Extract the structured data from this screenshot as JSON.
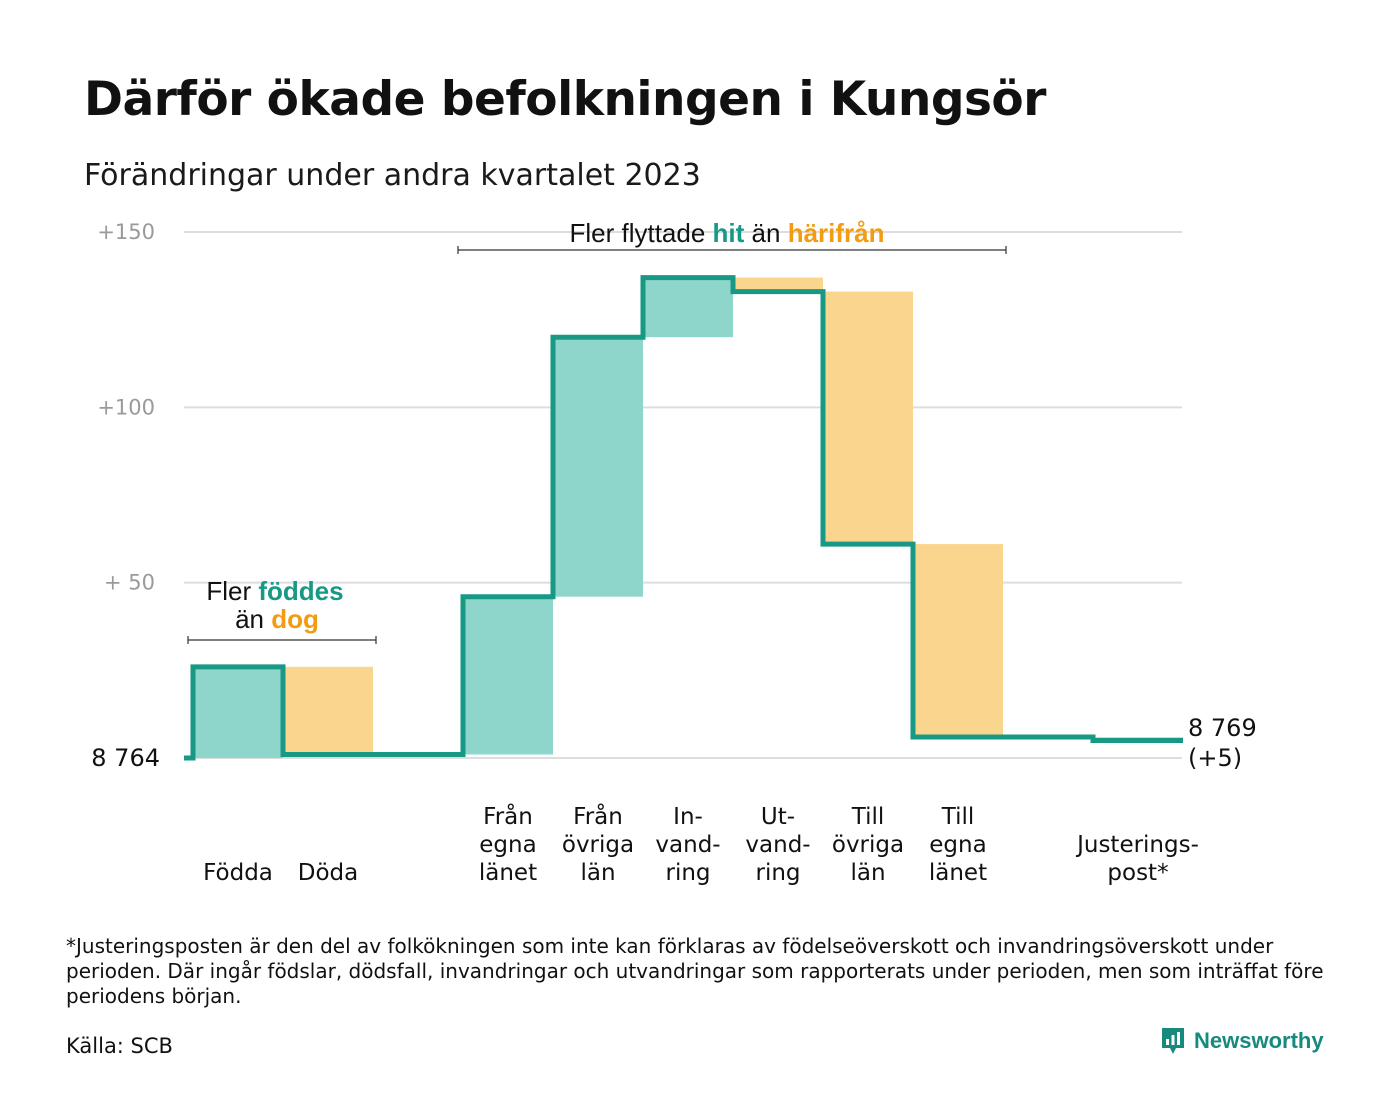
{
  "title": "Därför ökade befolkningen i Kungsör",
  "subtitle": "Förändringar under andra kvartalet 2023",
  "colors": {
    "teal": "#179985",
    "teal_fill": "#8ed6cb",
    "orange": "#f39c12",
    "orange_fill": "#fad58e",
    "grid": "#dddddd",
    "tick": "#9a9a9a"
  },
  "annotations": {
    "births": {
      "line1_pre": "Fler ",
      "line1_hl": "föddes",
      "line2_pre": "än ",
      "line2_hl": "dog"
    },
    "migration": {
      "pre": "Fler flyttade ",
      "hl1": "hit",
      "mid": " än ",
      "hl2": "härifrån"
    }
  },
  "start_label": "8  764",
  "end_label": [
    "8 769",
    "(+5)"
  ],
  "chart_data": {
    "type": "waterfall",
    "start_value": 8764,
    "end_value": 8769,
    "net_change": 5,
    "y_ticks": [
      {
        "value": 150,
        "label": "+150"
      },
      {
        "value": 100,
        "label": "+100"
      },
      {
        "value": 50,
        "label": "+  50"
      }
    ],
    "ylim": [
      0,
      150
    ],
    "grid": true,
    "steps": [
      {
        "label": [
          "Födda"
        ],
        "delta": 26,
        "kind": "in",
        "gap_after": false
      },
      {
        "label": [
          "Döda"
        ],
        "delta": -25,
        "kind": "out",
        "gap_after": true
      },
      {
        "label": [
          "Från",
          "egna",
          "länet"
        ],
        "delta": 45,
        "kind": "in",
        "gap_after": false
      },
      {
        "label": [
          "Från",
          "övriga",
          "län"
        ],
        "delta": 74,
        "kind": "in",
        "gap_after": false
      },
      {
        "label": [
          "In-",
          "vand-",
          "ring"
        ],
        "delta": 17,
        "kind": "in",
        "gap_after": false
      },
      {
        "label": [
          "Ut-",
          "vand-",
          "ring"
        ],
        "delta": -4,
        "kind": "out",
        "gap_after": false
      },
      {
        "label": [
          "Till",
          "övriga",
          "län"
        ],
        "delta": -72,
        "kind": "out",
        "gap_after": false
      },
      {
        "label": [
          "Till",
          "egna",
          "länet"
        ],
        "delta": -55,
        "kind": "out",
        "gap_after": true
      },
      {
        "label": [
          "Justerings-",
          "post*"
        ],
        "delta": -1,
        "kind": "out",
        "gap_after": false
      }
    ]
  },
  "footnote": "*Justeringsposten är den del av folkökningen som inte kan förklaras av födelseöverskott och invandringsöverskott under perioden. Där ingår födslar, dödsfall, invandringar och utvandringar som rapporterats under perioden, men som inträffat före periodens början.",
  "source": "Källa: SCB",
  "brand": {
    "name": "Newsworthy",
    "icon": "newsworthy-logo-icon"
  }
}
